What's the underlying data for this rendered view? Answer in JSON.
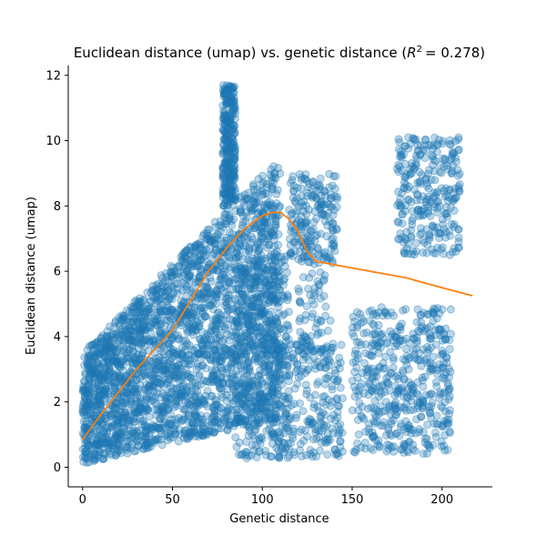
{
  "chart_data": {
    "type": "scatter",
    "title_main": "Euclidean distance (umap) vs. genetic distance (",
    "title_r2_value": "= 0.278)",
    "title_r2_symbol": "R",
    "title_r2_sup": "2",
    "xlabel": "Genetic distance",
    "ylabel": "Euclidean distance (umap)",
    "xlim": [
      -8,
      228
    ],
    "ylim": [
      -0.6,
      12.3
    ],
    "xticks": [
      0,
      50,
      100,
      150,
      200
    ],
    "yticks": [
      0,
      2,
      4,
      6,
      8,
      10,
      12
    ],
    "grid": false,
    "legend": "none",
    "r_squared": 0.278,
    "scatter_color": "#1f77b4",
    "scatter_alpha": 0.3,
    "trend_color": "#ff7f0e",
    "trend_line": {
      "x": [
        0,
        10,
        20,
        30,
        40,
        50,
        60,
        70,
        80,
        90,
        100,
        105,
        110,
        115,
        120,
        125,
        130,
        135,
        140,
        150,
        160,
        170,
        180,
        190,
        200,
        210,
        217
      ],
      "y": [
        0.85,
        1.6,
        2.3,
        3.0,
        3.6,
        4.2,
        5.1,
        6.0,
        6.7,
        7.3,
        7.7,
        7.8,
        7.8,
        7.6,
        7.2,
        6.6,
        6.3,
        6.25,
        6.2,
        6.1,
        6.0,
        5.9,
        5.8,
        5.65,
        5.5,
        5.35,
        5.25
      ]
    },
    "density_regions": [
      {
        "x0": 0,
        "x1": 110,
        "y_low_at_x0": 0.1,
        "y_low_at_x1": 1.5,
        "y_high_at_x0": 3.5,
        "y_high_at_x1": 9.5,
        "n": 2600
      },
      {
        "x0": 78,
        "x1": 85,
        "y_low": 8.0,
        "y_high": 11.7,
        "n": 300
      },
      {
        "x0": 105,
        "x1": 145,
        "y_low": 0.3,
        "y_high": 3.8,
        "n": 250
      },
      {
        "x0": 115,
        "x1": 142,
        "y_low": 6.2,
        "y_high": 9.0,
        "n": 200
      },
      {
        "x0": 120,
        "x1": 138,
        "y_low": 3.0,
        "y_high": 6.0,
        "n": 80
      },
      {
        "x0": 150,
        "x1": 205,
        "y_low": 0.4,
        "y_high": 4.9,
        "n": 500
      },
      {
        "x0": 175,
        "x1": 210,
        "y_low": 6.5,
        "y_high": 10.1,
        "n": 280
      },
      {
        "x0": 85,
        "x1": 115,
        "y_low": 0.2,
        "y_high": 6.5,
        "n": 350
      }
    ]
  }
}
